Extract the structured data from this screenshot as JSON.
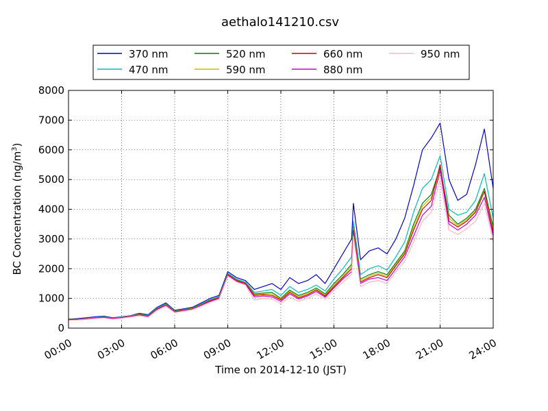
{
  "chart_data": {
    "type": "line",
    "title": "aethalo141210.csv",
    "xlabel": "Time on 2014-12-10 (JST)",
    "ylabel_main": "BC Concentration (ng/m",
    "ylabel_sup": "3",
    "ylabel_close": ")",
    "xlim": [
      0,
      24
    ],
    "ylim": [
      0,
      8000
    ],
    "grid": true,
    "legend_position": "top",
    "x_ticks": [
      {
        "value": 0,
        "label": "00:00"
      },
      {
        "value": 3,
        "label": "03:00"
      },
      {
        "value": 6,
        "label": "06:00"
      },
      {
        "value": 9,
        "label": "09:00"
      },
      {
        "value": 12,
        "label": "12:00"
      },
      {
        "value": 15,
        "label": "15:00"
      },
      {
        "value": 18,
        "label": "18:00"
      },
      {
        "value": 21,
        "label": "21:00"
      },
      {
        "value": 24,
        "label": "24:00"
      }
    ],
    "y_ticks": [
      {
        "value": 0,
        "label": "0"
      },
      {
        "value": 1000,
        "label": "1000"
      },
      {
        "value": 2000,
        "label": "2000"
      },
      {
        "value": 3000,
        "label": "3000"
      },
      {
        "value": 4000,
        "label": "4000"
      },
      {
        "value": 5000,
        "label": "5000"
      },
      {
        "value": 6000,
        "label": "6000"
      },
      {
        "value": 7000,
        "label": "7000"
      },
      {
        "value": 8000,
        "label": "8000"
      }
    ],
    "x": [
      0,
      0.5,
      1,
      1.5,
      2,
      2.5,
      3,
      3.5,
      4,
      4.5,
      5,
      5.5,
      6,
      6.5,
      7,
      7.5,
      8,
      8.5,
      9,
      9.5,
      10,
      10.5,
      11,
      11.5,
      12,
      12.5,
      13,
      13.5,
      14,
      14.5,
      15,
      15.5,
      16,
      16.1,
      16.5,
      17,
      17.5,
      18,
      18.5,
      19,
      19.5,
      20,
      20.5,
      21,
      21.5,
      22,
      22.5,
      23,
      23.5,
      24
    ],
    "series": [
      {
        "name": "370 nm",
        "color": "#0000cc",
        "values": [
          300,
          320,
          350,
          380,
          400,
          350,
          380,
          420,
          500,
          450,
          700,
          850,
          600,
          650,
          700,
          850,
          1000,
          1100,
          1900,
          1700,
          1600,
          1300,
          1400,
          1500,
          1300,
          1700,
          1500,
          1600,
          1800,
          1500,
          2000,
          2500,
          3000,
          4200,
          2300,
          2600,
          2700,
          2500,
          3000,
          3700,
          4800,
          6000,
          6400,
          6900,
          5000,
          4300,
          4500,
          5500,
          6700,
          4700
        ]
      },
      {
        "name": "470 nm",
        "color": "#00bbbb",
        "values": [
          300,
          300,
          330,
          360,
          380,
          340,
          370,
          410,
          480,
          430,
          680,
          820,
          580,
          630,
          680,
          820,
          960,
          1060,
          1850,
          1650,
          1550,
          1200,
          1250,
          1300,
          1100,
          1400,
          1200,
          1300,
          1450,
          1250,
          1650,
          2000,
          2400,
          3600,
          1800,
          2000,
          2100,
          1950,
          2400,
          2900,
          3900,
          4700,
          5000,
          5800,
          4000,
          3800,
          3900,
          4300,
          5200,
          3700
        ]
      },
      {
        "name": "520 nm",
        "color": "#008000",
        "values": [
          300,
          300,
          320,
          350,
          370,
          330,
          360,
          400,
          470,
          420,
          660,
          800,
          570,
          620,
          670,
          800,
          940,
          1040,
          1820,
          1620,
          1520,
          1150,
          1180,
          1200,
          1000,
          1280,
          1100,
          1200,
          1350,
          1150,
          1500,
          1800,
          2150,
          3400,
          1650,
          1800,
          1900,
          1800,
          2200,
          2600,
          3500,
          4200,
          4500,
          5400,
          3800,
          3500,
          3700,
          4000,
          4700,
          3400
        ]
      },
      {
        "name": "590 nm",
        "color": "#ccbb00",
        "values": [
          290,
          300,
          320,
          350,
          370,
          330,
          360,
          400,
          460,
          410,
          650,
          790,
          560,
          610,
          660,
          790,
          930,
          1030,
          1810,
          1610,
          1510,
          1120,
          1150,
          1150,
          970,
          1240,
          1060,
          1160,
          1310,
          1110,
          1450,
          1740,
          2080,
          3350,
          1600,
          1750,
          1850,
          1750,
          2150,
          2550,
          3400,
          4100,
          4400,
          5300,
          3700,
          3450,
          3650,
          3950,
          4600,
          3300
        ]
      },
      {
        "name": "660 nm",
        "color": "#cc0000",
        "values": [
          290,
          290,
          310,
          340,
          360,
          320,
          350,
          390,
          450,
          400,
          640,
          780,
          550,
          600,
          650,
          780,
          920,
          1020,
          1800,
          1600,
          1500,
          1100,
          1120,
          1100,
          950,
          1200,
          1020,
          1120,
          1280,
          1080,
          1400,
          1700,
          2000,
          3300,
          1550,
          1700,
          1800,
          1700,
          2100,
          2500,
          3300,
          4000,
          4300,
          5500,
          3600,
          3400,
          3600,
          3900,
          4600,
          3200
        ]
      },
      {
        "name": "880 nm",
        "color": "#cc00cc",
        "values": [
          280,
          290,
          310,
          340,
          360,
          320,
          350,
          390,
          440,
          390,
          630,
          770,
          540,
          590,
          640,
          770,
          900,
          1000,
          1780,
          1580,
          1480,
          1050,
          1080,
          1050,
          900,
          1150,
          980,
          1080,
          1230,
          1040,
          1350,
          1650,
          1900,
          3200,
          1500,
          1650,
          1700,
          1600,
          2000,
          2400,
          3100,
          3800,
          4100,
          5300,
          3500,
          3300,
          3500,
          3800,
          4400,
          3100
        ]
      },
      {
        "name": "950 nm",
        "color": "#ffb6c1",
        "values": [
          260,
          270,
          290,
          320,
          340,
          300,
          330,
          370,
          420,
          370,
          600,
          740,
          520,
          570,
          620,
          740,
          870,
          970,
          1750,
          1550,
          1450,
          950,
          1000,
          980,
          820,
          1050,
          900,
          1000,
          1150,
          970,
          1270,
          1550,
          1800,
          3100,
          1400,
          1550,
          1600,
          1500,
          1900,
          2250,
          2900,
          3600,
          3900,
          5000,
          3300,
          3150,
          3350,
          3600,
          4200,
          2900
        ]
      }
    ]
  }
}
